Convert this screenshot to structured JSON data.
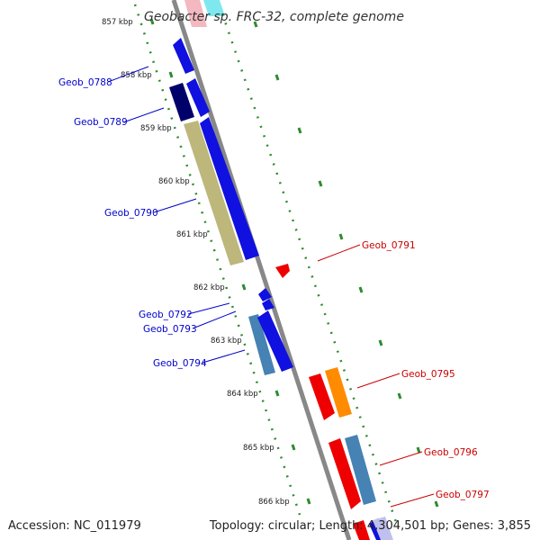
{
  "title": "Geobacter sp. FRC-32, complete genome",
  "accession": "Accession: NC_011979",
  "topology": "Topology: circular; Length: 4,304,501 bp; Genes: 3,855",
  "colors": {
    "backbone": "#888888",
    "tick": "#2e8b2e",
    "forward_label": "#0000cc",
    "reverse_label": "#cc0000"
  },
  "kbp_labels": [
    "857 kbp",
    "858 kbp",
    "859 kbp",
    "860 kbp",
    "861 kbp",
    "862 kbp",
    "863 kbp",
    "864 kbp",
    "865 kbp",
    "866 kbp"
  ],
  "gene_labels_left": [
    "Geob_0788",
    "Geob_0789",
    "Geob_0790",
    "Geob_0792",
    "Geob_0793",
    "Geob_0794"
  ],
  "gene_labels_right": [
    "Geob_0791",
    "Geob_0795",
    "Geob_0796",
    "Geob_0797"
  ]
}
